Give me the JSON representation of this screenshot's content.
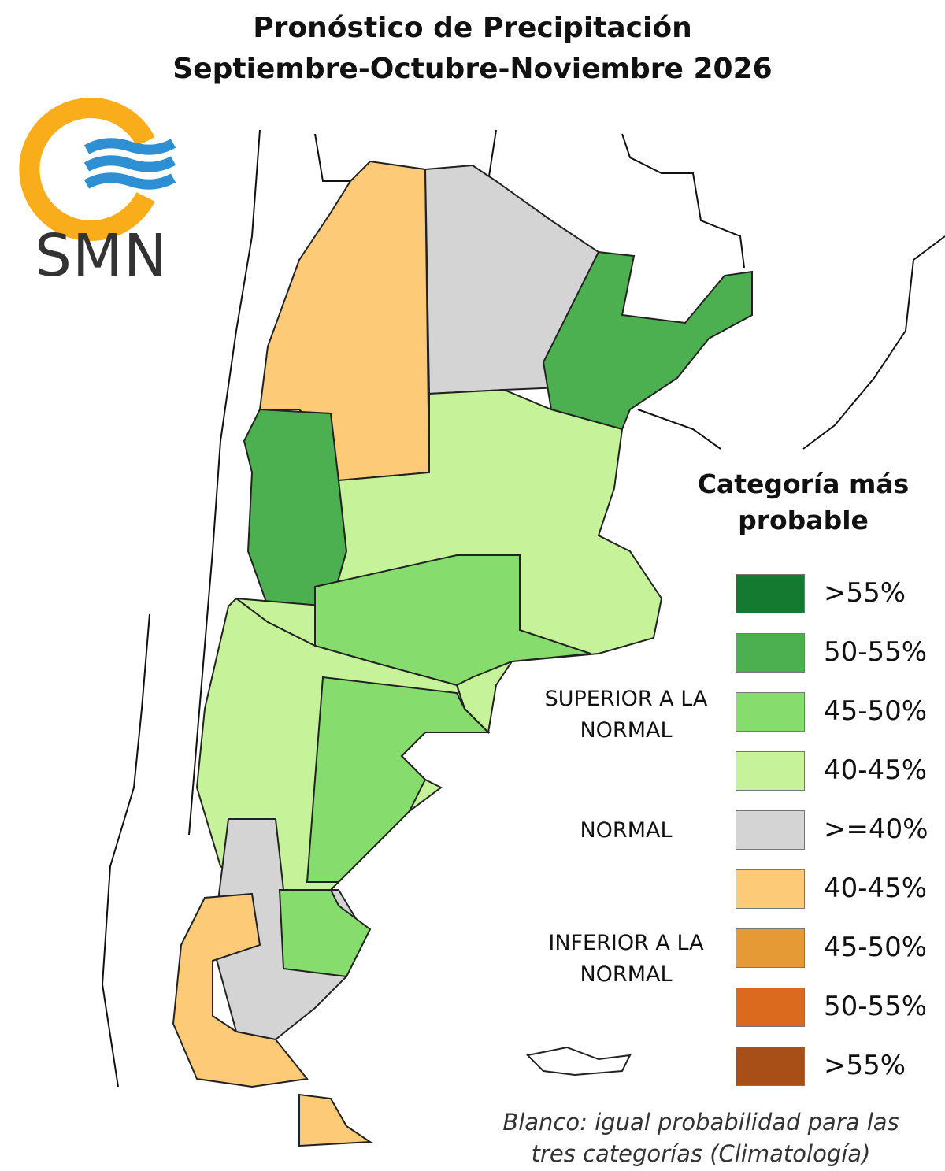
{
  "header": {
    "title": "Pronóstico de Precipitación",
    "subtitle": "Septiembre-Octubre-Noviembre 2026"
  },
  "logo": {
    "text": "SMN"
  },
  "legend": {
    "title": "Categoría más probable",
    "items": [
      {
        "label": ">55%",
        "color": "#137a30"
      },
      {
        "label": "50-55%",
        "color": "#4caf50"
      },
      {
        "label": "45-50%",
        "color": "#86dc6c"
      },
      {
        "label": "40-45%",
        "color": "#c6f29a"
      },
      {
        "label": ">=40%",
        "color": "#d4d4d4"
      },
      {
        "label": "40-45%",
        "color": "#fdca77"
      },
      {
        "label": "45-50%",
        "color": "#e59a35"
      },
      {
        "label": "50-55%",
        "color": "#dc6a1e"
      },
      {
        "label": ">55%",
        "color": "#a84f18"
      }
    ],
    "groups": [
      {
        "label": "SUPERIOR A LA NORMAL"
      },
      {
        "label": "NORMAL"
      },
      {
        "label": "INFERIOR A LA NORMAL"
      }
    ]
  },
  "note": "Blanco: igual probabilidad para las tres categorías (Climatología)"
}
